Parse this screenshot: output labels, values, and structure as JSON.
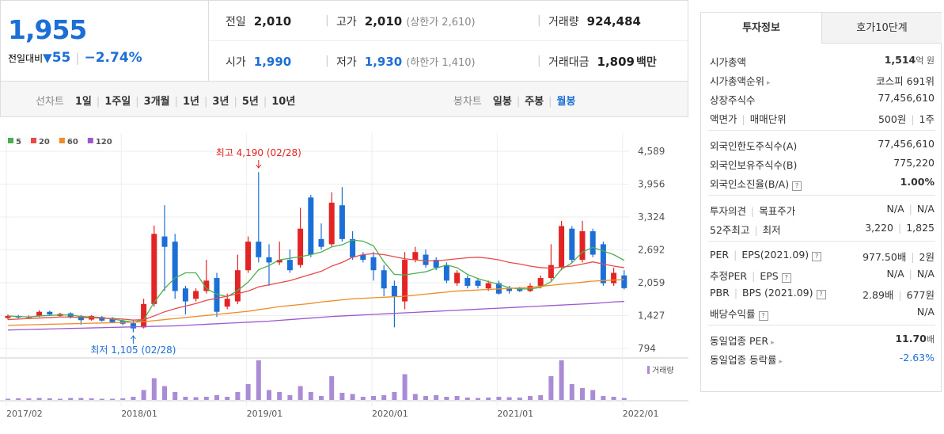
{
  "header": {
    "price": "1,955",
    "change_label": "전일대비",
    "change": "55",
    "rate": "−2.74%",
    "row1": [
      {
        "label": "전일",
        "value": "2,010"
      },
      {
        "label": "고가",
        "value": "2,010",
        "note": "(상한가 2,610)"
      },
      {
        "label": "거래량",
        "value": "924,484"
      }
    ],
    "row2": [
      {
        "label": "시가",
        "value": "1,990"
      },
      {
        "label": "저가",
        "value": "1,930",
        "note": "(하한가 1,410)"
      },
      {
        "label": "거래대금",
        "value": "1,809",
        "unit": "백만"
      }
    ]
  },
  "periods": {
    "line_label": "선차트",
    "line": [
      "1일",
      "1주일",
      "3개월",
      "1년",
      "3년",
      "5년",
      "10년"
    ],
    "candle_label": "봉차트",
    "candle": [
      "일봉",
      "주봉",
      "월봉"
    ],
    "selected": "월봉"
  },
  "chart_data": {
    "type": "candlestick",
    "categories": [
      "2017/02",
      null,
      null,
      null,
      null,
      null,
      null,
      null,
      null,
      null,
      null,
      "2018/01",
      null,
      null,
      null,
      null,
      null,
      null,
      null,
      null,
      null,
      null,
      null,
      "2019/01",
      null,
      null,
      null,
      null,
      null,
      null,
      null,
      null,
      null,
      null,
      null,
      "2020/01",
      null,
      null,
      null,
      null,
      null,
      null,
      null,
      null,
      null,
      null,
      null,
      "2021/01",
      null,
      null,
      null,
      null,
      null,
      null,
      null,
      null,
      null,
      null,
      null,
      "2022/01"
    ],
    "open": [
      1380,
      1420,
      1390,
      1420,
      1500,
      1420,
      1470,
      1420,
      1350,
      1400,
      1380,
      1330,
      1280,
      1200,
      1650,
      2950,
      2850,
      1950,
      1750,
      1900,
      2150,
      1600,
      1700,
      2300,
      2850,
      2550,
      2450,
      2500,
      2400,
      3700,
      2900,
      2800,
      3550,
      2900,
      2600,
      2550,
      2300,
      2000,
      1700,
      2500,
      2600,
      2500,
      2400,
      2050,
      2150,
      2100,
      1950,
      2050,
      1950,
      1950,
      1900,
      2000,
      2150,
      2350,
      3100,
      2500,
      3050,
      2800,
      2050,
      2200
    ],
    "close": [
      1420,
      1390,
      1400,
      1500,
      1450,
      1460,
      1390,
      1340,
      1420,
      1330,
      1300,
      1270,
      1180,
      1650,
      3000,
      2750,
      1900,
      1700,
      1900,
      2100,
      1500,
      1750,
      2300,
      2850,
      2550,
      2450,
      2500,
      2300,
      3100,
      2600,
      2750,
      3600,
      2900,
      2550,
      2500,
      2300,
      1950,
      1800,
      2500,
      2650,
      2400,
      2350,
      2100,
      2250,
      2000,
      2000,
      2050,
      1850,
      1900,
      1900,
      2000,
      2150,
      2400,
      3150,
      2500,
      3050,
      2600,
      2050,
      2250,
      1955
    ],
    "high": [
      1450,
      1440,
      1430,
      1530,
      1520,
      1480,
      1490,
      1440,
      1440,
      1420,
      1400,
      1350,
      1330,
      1750,
      3160,
      3550,
      3000,
      2000,
      1950,
      2500,
      2250,
      1850,
      2600,
      2950,
      4190,
      2800,
      2850,
      2700,
      3500,
      3750,
      3200,
      3800,
      3900,
      3050,
      2650,
      2650,
      2400,
      2100,
      2650,
      2750,
      2700,
      2550,
      2450,
      2300,
      2200,
      2150,
      2100,
      2100,
      2000,
      1980,
      2050,
      2200,
      2800,
      3250,
      3150,
      3250,
      3100,
      2850,
      2350,
      2300
    ],
    "low": [
      1350,
      1370,
      1360,
      1400,
      1430,
      1400,
      1370,
      1250,
      1330,
      1310,
      1280,
      1240,
      1105,
      1180,
      1600,
      1900,
      1750,
      1450,
      1700,
      1850,
      1400,
      1550,
      1650,
      2250,
      2450,
      2000,
      2400,
      2250,
      2350,
      2550,
      2700,
      2750,
      2850,
      2500,
      2450,
      2100,
      1800,
      1200,
      1550,
      2450,
      2350,
      2300,
      2050,
      2000,
      1950,
      1950,
      1900,
      1830,
      1850,
      1880,
      1880,
      1950,
      2100,
      2300,
      2450,
      2450,
      2550,
      2000,
      2000,
      1930
    ],
    "up_color": "#e32424",
    "down_color": "#1d6fd8",
    "ma": [
      {
        "name": "5",
        "color": "#4caf50",
        "values": [
          1420,
          1410,
          1400,
          1420,
          1430,
          1440,
          1440,
          1410,
          1400,
          1390,
          1360,
          1330,
          1300,
          1350,
          1680,
          1950,
          2150,
          2250,
          2250,
          1950,
          1840,
          1790,
          1910,
          2070,
          2310,
          2390,
          2500,
          2530,
          2560,
          2600,
          2650,
          2750,
          2790,
          2880,
          2860,
          2770,
          2460,
          2220,
          2210,
          2240,
          2270,
          2340,
          2400,
          2350,
          2220,
          2140,
          2080,
          2030,
          1960,
          1940,
          1940,
          1970,
          2080,
          2320,
          2440,
          2650,
          2740,
          2670,
          2600,
          2490
        ]
      },
      {
        "name": "20",
        "color": "#e84a4a",
        "values": [
          1350,
          1360,
          1370,
          1380,
          1390,
          1400,
          1400,
          1390,
          1390,
          1380,
          1370,
          1360,
          1340,
          1350,
          1420,
          1500,
          1560,
          1610,
          1660,
          1720,
          1760,
          1800,
          1850,
          1900,
          1980,
          2020,
          2060,
          2100,
          2160,
          2220,
          2280,
          2380,
          2450,
          2550,
          2600,
          2620,
          2600,
          2560,
          2520,
          2500,
          2480,
          2480,
          2500,
          2520,
          2540,
          2550,
          2530,
          2500,
          2450,
          2420,
          2380,
          2350,
          2340,
          2360,
          2380,
          2420,
          2460,
          2420,
          2380,
          2350
        ]
      },
      {
        "name": "60",
        "color": "#f08c28",
        "values": [
          1240,
          1245,
          1250,
          1255,
          1260,
          1265,
          1270,
          1275,
          1280,
          1285,
          1290,
          1295,
          1300,
          1310,
          1330,
          1350,
          1370,
          1390,
          1410,
          1430,
          1450,
          1470,
          1490,
          1510,
          1540,
          1570,
          1600,
          1620,
          1640,
          1660,
          1690,
          1710,
          1730,
          1750,
          1760,
          1770,
          1780,
          1790,
          1800,
          1820,
          1840,
          1860,
          1880,
          1900,
          1910,
          1920,
          1930,
          1940,
          1950,
          1960,
          1970,
          1990,
          2010,
          2030,
          2050,
          2070,
          2090,
          2100,
          2110,
          2120
        ]
      },
      {
        "name": "120",
        "color": "#9b59d0",
        "values": [
          1150,
          1155,
          1160,
          1165,
          1170,
          1175,
          1180,
          1185,
          1190,
          1195,
          1200,
          1205,
          1210,
          1215,
          1220,
          1225,
          1230,
          1240,
          1250,
          1260,
          1270,
          1280,
          1290,
          1300,
          1310,
          1320,
          1335,
          1350,
          1365,
          1380,
          1395,
          1410,
          1420,
          1430,
          1440,
          1450,
          1460,
          1470,
          1480,
          1490,
          1500,
          1510,
          1520,
          1530,
          1540,
          1550,
          1560,
          1570,
          1580,
          1590,
          1600,
          1610,
          1620,
          1630,
          1640,
          1650,
          1660,
          1675,
          1690,
          1700
        ]
      }
    ],
    "ylim": [
      642,
      4757
    ],
    "yticks": [
      {
        "value": 4589,
        "label": "4,589"
      },
      {
        "value": 3956,
        "label": "3,956"
      },
      {
        "value": 3324,
        "label": "3,324"
      },
      {
        "value": 2692,
        "label": "2,692"
      },
      {
        "value": 2059,
        "label": "2,059"
      },
      {
        "value": 1427,
        "label": "1,427"
      },
      794
    ],
    "high_label": "최고 4,190 (02/28)",
    "low_label": "최저 1,105 (02/28)",
    "volume": {
      "name": "거래량",
      "color": "#a98bd6",
      "ylim": [
        0,
        100
      ],
      "values": [
        3,
        4,
        4,
        5,
        4,
        3,
        5,
        5,
        4,
        3,
        3,
        4,
        8,
        25,
        55,
        35,
        20,
        8,
        7,
        8,
        12,
        8,
        20,
        40,
        100,
        25,
        20,
        12,
        35,
        20,
        10,
        60,
        18,
        15,
        8,
        10,
        12,
        20,
        65,
        15,
        10,
        12,
        8,
        10,
        6,
        5,
        6,
        8,
        7,
        6,
        10,
        12,
        60,
        100,
        40,
        30,
        25,
        10,
        8,
        5
      ]
    }
  },
  "info": {
    "tabs": [
      "투자정보",
      "호가10단계"
    ],
    "selected": "투자정보",
    "groups": [
      [
        {
          "label": [
            "시가총액"
          ],
          "values": [
            "1,514",
            "억 원"
          ],
          "join": "unit"
        },
        {
          "label": [
            "시가총액순위"
          ],
          "arrow": true,
          "values": [
            "코스피 691위"
          ]
        },
        {
          "label": [
            "상장주식수"
          ],
          "values": [
            "77,456,610"
          ]
        },
        {
          "label": [
            "액면가",
            "매매단위"
          ],
          "values": [
            "500원",
            "1주"
          ]
        }
      ],
      [
        {
          "label": [
            "외국인한도주식수(A)"
          ],
          "values": [
            "77,456,610"
          ]
        },
        {
          "label": [
            "외국인보유주식수(B)"
          ],
          "values": [
            "775,220"
          ]
        },
        {
          "label": [
            "외국인소진율(B/A)"
          ],
          "help": true,
          "values": [
            "1.00%"
          ],
          "bold": true
        }
      ],
      [
        {
          "label": [
            "투자의견",
            "목표주가"
          ],
          "values": [
            "N/A",
            "N/A"
          ]
        },
        {
          "label": [
            "52주최고",
            "최저"
          ],
          "values": [
            "3,220",
            "1,825"
          ]
        }
      ],
      [
        {
          "label": [
            "PER",
            "EPS(2021.09)"
          ],
          "help": true,
          "values": [
            "977.50배",
            "2원"
          ]
        },
        {
          "label": [
            "추정PER",
            "EPS"
          ],
          "help": true,
          "values": [
            "N/A",
            "N/A"
          ]
        },
        {
          "label": [
            "PBR",
            "BPS (2021.09)"
          ],
          "help": true,
          "values": [
            "2.89배",
            "677원"
          ]
        },
        {
          "label": [
            "배당수익률"
          ],
          "help": true,
          "values": [
            "N/A"
          ]
        }
      ],
      [
        {
          "label": [
            "동일업종 PER"
          ],
          "arrow": true,
          "values": [
            "11.70",
            "배"
          ],
          "join": "unit"
        },
        {
          "label": [
            "동일업종 등락률"
          ],
          "arrow": true,
          "values": [
            "-2.63%"
          ],
          "blue": true
        }
      ]
    ]
  }
}
